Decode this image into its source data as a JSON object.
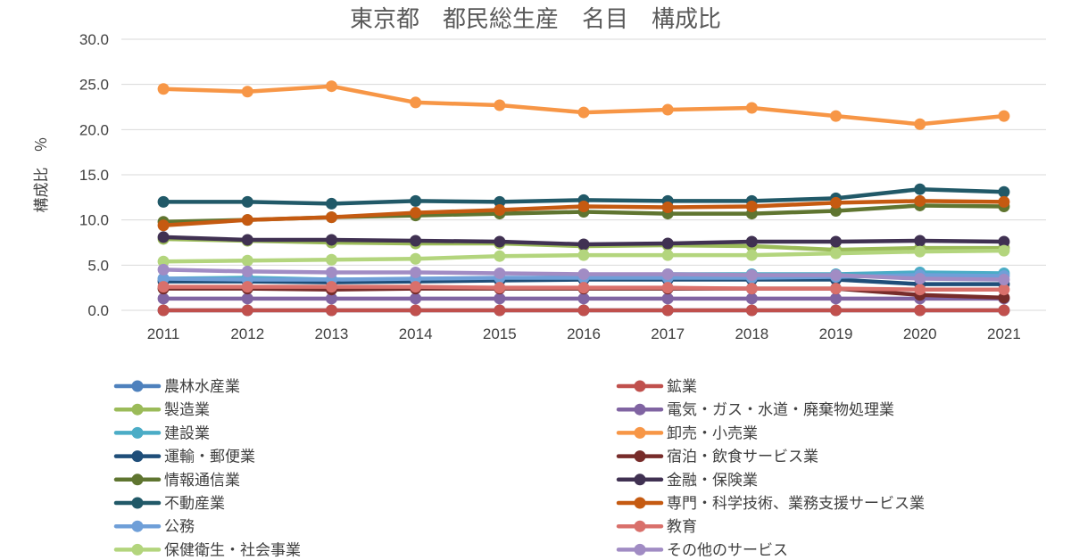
{
  "chart_data": {
    "type": "line",
    "title": "東京都　都民総生産　名目　構成比",
    "xlabel": "",
    "ylabel": "構成比　％",
    "ylim": [
      0,
      30
    ],
    "yticks": [
      "0.0",
      "5.0",
      "10.0",
      "15.0",
      "20.0",
      "25.0",
      "30.0"
    ],
    "categories": [
      "2011",
      "2012",
      "2013",
      "2014",
      "2015",
      "2016",
      "2017",
      "2018",
      "2019",
      "2020",
      "2021"
    ],
    "grid": true,
    "legend_position": "bottom",
    "series": [
      {
        "name": "農林水産業",
        "color": "#4e81bd",
        "values": [
          0.0,
          0.0,
          0.0,
          0.0,
          0.0,
          0.0,
          0.0,
          0.0,
          0.0,
          0.0,
          0.0
        ]
      },
      {
        "name": "鉱業",
        "color": "#c0504d",
        "values": [
          0.0,
          0.0,
          0.0,
          0.0,
          0.0,
          0.0,
          0.0,
          0.0,
          0.0,
          0.0,
          0.0
        ]
      },
      {
        "name": "製造業",
        "color": "#9bbb59",
        "values": [
          7.9,
          7.7,
          7.5,
          7.4,
          7.4,
          7.1,
          7.2,
          7.1,
          6.7,
          6.9,
          6.9
        ]
      },
      {
        "name": "電気・ガス・水道・廃棄物処理業",
        "color": "#8064a2",
        "values": [
          1.3,
          1.3,
          1.3,
          1.3,
          1.3,
          1.3,
          1.3,
          1.3,
          1.3,
          1.3,
          1.3
        ]
      },
      {
        "name": "建設業",
        "color": "#4bacc6",
        "values": [
          3.5,
          3.6,
          3.4,
          3.4,
          3.5,
          3.7,
          4.0,
          4.0,
          4.0,
          4.2,
          4.1
        ]
      },
      {
        "name": "卸売・小売業",
        "color": "#f79646",
        "values": [
          24.5,
          24.2,
          24.8,
          23.0,
          22.7,
          21.9,
          22.2,
          22.4,
          21.5,
          20.6,
          21.5
        ]
      },
      {
        "name": "運輸・郵便業",
        "color": "#1f4e79",
        "values": [
          3.2,
          3.2,
          3.1,
          3.2,
          3.3,
          3.4,
          3.4,
          3.4,
          3.4,
          2.9,
          2.9
        ]
      },
      {
        "name": "宿泊・飲食サービス業",
        "color": "#772c2a",
        "values": [
          2.4,
          2.4,
          2.3,
          2.4,
          2.4,
          2.4,
          2.4,
          2.4,
          2.4,
          1.7,
          1.4
        ]
      },
      {
        "name": "情報通信業",
        "color": "#5f7530",
        "values": [
          9.8,
          10.0,
          10.3,
          10.5,
          10.7,
          10.9,
          10.7,
          10.7,
          11.0,
          11.6,
          11.5
        ]
      },
      {
        "name": "金融・保険業",
        "color": "#403152",
        "values": [
          8.1,
          7.8,
          7.8,
          7.7,
          7.6,
          7.3,
          7.4,
          7.6,
          7.6,
          7.7,
          7.6
        ]
      },
      {
        "name": "不動産業",
        "color": "#215968",
        "values": [
          12.0,
          12.0,
          11.8,
          12.1,
          12.0,
          12.2,
          12.1,
          12.1,
          12.4,
          13.4,
          13.1
        ]
      },
      {
        "name": "専門・科学技術、業務支援サービス業",
        "color": "#c55a11",
        "values": [
          9.4,
          10.0,
          10.3,
          10.8,
          11.1,
          11.5,
          11.4,
          11.5,
          11.9,
          12.1,
          12.0
        ]
      },
      {
        "name": "公務",
        "color": "#6f9fd8",
        "values": [
          3.5,
          3.4,
          3.4,
          3.5,
          3.6,
          3.6,
          3.6,
          3.6,
          3.7,
          3.9,
          3.8
        ]
      },
      {
        "name": "教育",
        "color": "#d9706b",
        "values": [
          2.6,
          2.6,
          2.6,
          2.6,
          2.5,
          2.5,
          2.5,
          2.4,
          2.4,
          2.3,
          2.3
        ]
      },
      {
        "name": "保健衛生・社会事業",
        "color": "#b3d57d",
        "values": [
          5.4,
          5.5,
          5.6,
          5.7,
          6.0,
          6.1,
          6.1,
          6.1,
          6.3,
          6.5,
          6.6
        ]
      },
      {
        "name": "その他のサービス",
        "color": "#a18cc4",
        "values": [
          4.5,
          4.3,
          4.2,
          4.2,
          4.1,
          4.0,
          4.0,
          3.9,
          3.9,
          3.5,
          3.4
        ]
      }
    ]
  }
}
